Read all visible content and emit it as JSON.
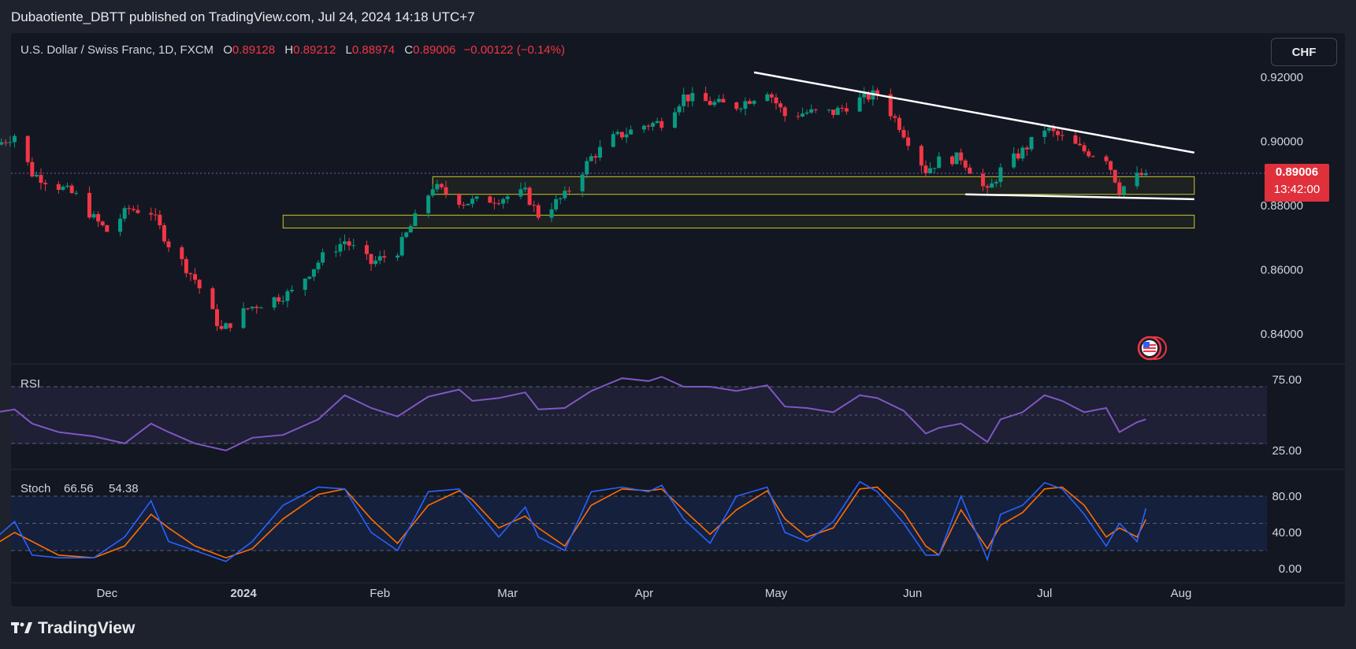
{
  "header": {
    "published": "Dubaotiente_DBTT published on TradingView.com, Jul 24, 2024 14:18 UTC+7"
  },
  "legend": {
    "symbol": "U.S. Dollar / Swiss Franc, 1D, FXCM",
    "o_label": "O",
    "o_value": "0.89128",
    "h_label": "H",
    "h_value": "0.89212",
    "l_label": "L",
    "l_value": "0.88974",
    "c_label": "C",
    "c_value": "0.89006",
    "change": "−0.00122 (−0.14%)"
  },
  "currency_button": "CHF",
  "last_price": {
    "price": "0.89006",
    "countdown": "13:42:00"
  },
  "rsi": {
    "title": "RSI",
    "upper": "75.00",
    "lower": "25.00"
  },
  "stoch": {
    "title": "Stoch",
    "k_value": "66.56",
    "d_value": "54.38",
    "levels": [
      "80.00",
      "40.00",
      "0.00"
    ]
  },
  "footer": {
    "brand": "TradingView"
  },
  "colors": {
    "up": "#089981",
    "down": "#f23645",
    "rsi": "#7e57c2",
    "stoch_k": "#2962ff",
    "stoch_d": "#ff6d00",
    "zone": "#c7c72a",
    "trendline": "#ffffff"
  },
  "chart_data": {
    "type": "candlestick",
    "title": "U.S. Dollar / Swiss Franc, 1D, FXCM",
    "price_axis": {
      "ticks": [
        0.92,
        0.9,
        0.88,
        0.86,
        0.84
      ],
      "tick_labels": [
        "0.92000",
        "0.90000",
        "0.88000",
        "0.86000",
        "0.84000"
      ],
      "ylim": [
        0.829,
        0.929
      ]
    },
    "x_axis": {
      "tick_labels": [
        "Dec",
        "2024",
        "Feb",
        "Mar",
        "Apr",
        "May",
        "Jun",
        "Jul",
        "Aug"
      ],
      "tick_dates": [
        "2023-12-01",
        "2024-01-01",
        "2024-02-01",
        "2024-03-01",
        "2024-04-01",
        "2024-05-01",
        "2024-06-01",
        "2024-07-01",
        "2024-08-01"
      ]
    },
    "close_path": [
      [
        "2023-11-06",
        0.899
      ],
      [
        "2023-11-10",
        0.902
      ],
      [
        "2023-11-14",
        0.89
      ],
      [
        "2023-11-20",
        0.886
      ],
      [
        "2023-11-24",
        0.883
      ],
      [
        "2023-11-28",
        0.876
      ],
      [
        "2023-12-01",
        0.872
      ],
      [
        "2023-12-06",
        0.879
      ],
      [
        "2023-12-11",
        0.878
      ],
      [
        "2023-12-15",
        0.868
      ],
      [
        "2023-12-21",
        0.857
      ],
      [
        "2023-12-27",
        0.841
      ],
      [
        "2024-01-02",
        0.848
      ],
      [
        "2024-01-08",
        0.851
      ],
      [
        "2024-01-12",
        0.853
      ],
      [
        "2024-01-19",
        0.864
      ],
      [
        "2024-01-24",
        0.869
      ],
      [
        "2024-01-30",
        0.862
      ],
      [
        "2024-02-05",
        0.866
      ],
      [
        "2024-02-09",
        0.876
      ],
      [
        "2024-02-13",
        0.886
      ],
      [
        "2024-02-20",
        0.881
      ],
      [
        "2024-02-27",
        0.882
      ],
      [
        "2024-03-05",
        0.884
      ],
      [
        "2024-03-08",
        0.877
      ],
      [
        "2024-03-14",
        0.883
      ],
      [
        "2024-03-20",
        0.895
      ],
      [
        "2024-03-25",
        0.901
      ],
      [
        "2024-04-01",
        0.905
      ],
      [
        "2024-04-05",
        0.906
      ],
      [
        "2024-04-10",
        0.914
      ],
      [
        "2024-04-16",
        0.912
      ],
      [
        "2024-04-22",
        0.911
      ],
      [
        "2024-04-29",
        0.916
      ],
      [
        "2024-05-03",
        0.908
      ],
      [
        "2024-05-08",
        0.909
      ],
      [
        "2024-05-14",
        0.909
      ],
      [
        "2024-05-20",
        0.913
      ],
      [
        "2024-05-24",
        0.915
      ],
      [
        "2024-05-29",
        0.905
      ],
      [
        "2024-06-04",
        0.891
      ],
      [
        "2024-06-07",
        0.894
      ],
      [
        "2024-06-12",
        0.895
      ],
      [
        "2024-06-18",
        0.884
      ],
      [
        "2024-06-21",
        0.891
      ],
      [
        "2024-06-26",
        0.897
      ],
      [
        "2024-07-01",
        0.904
      ],
      [
        "2024-07-05",
        0.901
      ],
      [
        "2024-07-10",
        0.897
      ],
      [
        "2024-07-15",
        0.895
      ],
      [
        "2024-07-18",
        0.885
      ],
      [
        "2024-07-22",
        0.889
      ],
      [
        "2024-07-24",
        0.89
      ]
    ],
    "last_close": 0.89006,
    "support_zones": [
      {
        "from": "2024-02-13",
        "to": "2024-08-04",
        "low": 0.8835,
        "high": 0.889
      },
      {
        "from": "2024-01-10",
        "to": "2024-08-04",
        "low": 0.873,
        "high": 0.877
      }
    ],
    "trendlines": [
      {
        "from": [
          "2024-04-26",
          0.9215
        ],
        "to": [
          "2024-08-04",
          0.8965
        ]
      },
      {
        "from": [
          "2024-06-13",
          0.8835
        ],
        "to": [
          "2024-08-04",
          0.882
        ]
      }
    ],
    "rsi": {
      "levels": [
        70,
        50,
        30
      ],
      "ylim": [
        20,
        80
      ],
      "points": [
        [
          "2023-11-06",
          52
        ],
        [
          "2023-11-10",
          54
        ],
        [
          "2023-11-14",
          44
        ],
        [
          "2023-11-20",
          38
        ],
        [
          "2023-11-28",
          35
        ],
        [
          "2023-12-05",
          30
        ],
        [
          "2023-12-11",
          44
        ],
        [
          "2023-12-15",
          38
        ],
        [
          "2023-12-21",
          30
        ],
        [
          "2023-12-28",
          25
        ],
        [
          "2024-01-03",
          34
        ],
        [
          "2024-01-10",
          36
        ],
        [
          "2024-01-18",
          47
        ],
        [
          "2024-01-24",
          64
        ],
        [
          "2024-01-30",
          55
        ],
        [
          "2024-02-05",
          49
        ],
        [
          "2024-02-12",
          63
        ],
        [
          "2024-02-19",
          68
        ],
        [
          "2024-02-22",
          60
        ],
        [
          "2024-02-28",
          62
        ],
        [
          "2024-03-05",
          66
        ],
        [
          "2024-03-08",
          54
        ],
        [
          "2024-03-14",
          55
        ],
        [
          "2024-03-20",
          67
        ],
        [
          "2024-03-27",
          76
        ],
        [
          "2024-04-02",
          74
        ],
        [
          "2024-04-05",
          77
        ],
        [
          "2024-04-10",
          70
        ],
        [
          "2024-04-16",
          70
        ],
        [
          "2024-04-22",
          67
        ],
        [
          "2024-04-29",
          71
        ],
        [
          "2024-05-03",
          56
        ],
        [
          "2024-05-08",
          55
        ],
        [
          "2024-05-14",
          52
        ],
        [
          "2024-05-20",
          64
        ],
        [
          "2024-05-24",
          62
        ],
        [
          "2024-05-30",
          53
        ],
        [
          "2024-06-04",
          37
        ],
        [
          "2024-06-07",
          41
        ],
        [
          "2024-06-12",
          44
        ],
        [
          "2024-06-18",
          31
        ],
        [
          "2024-06-21",
          47
        ],
        [
          "2024-06-26",
          52
        ],
        [
          "2024-07-01",
          64
        ],
        [
          "2024-07-05",
          60
        ],
        [
          "2024-07-10",
          52
        ],
        [
          "2024-07-15",
          55
        ],
        [
          "2024-07-18",
          38
        ],
        [
          "2024-07-22",
          45
        ],
        [
          "2024-07-24",
          47
        ]
      ]
    },
    "stochastic": {
      "levels": [
        80,
        50,
        20
      ],
      "ylim": [
        -5,
        100
      ],
      "k": [
        [
          "2023-11-06",
          35
        ],
        [
          "2023-11-10",
          52
        ],
        [
          "2023-11-14",
          15
        ],
        [
          "2023-11-20",
          12
        ],
        [
          "2023-11-28",
          12
        ],
        [
          "2023-12-05",
          35
        ],
        [
          "2023-12-11",
          75
        ],
        [
          "2023-12-15",
          30
        ],
        [
          "2023-12-21",
          20
        ],
        [
          "2023-12-28",
          8
        ],
        [
          "2024-01-03",
          30
        ],
        [
          "2024-01-10",
          70
        ],
        [
          "2024-01-18",
          90
        ],
        [
          "2024-01-24",
          88
        ],
        [
          "2024-01-30",
          40
        ],
        [
          "2024-02-05",
          20
        ],
        [
          "2024-02-12",
          85
        ],
        [
          "2024-02-19",
          88
        ],
        [
          "2024-02-22",
          70
        ],
        [
          "2024-02-28",
          35
        ],
        [
          "2024-03-05",
          68
        ],
        [
          "2024-03-08",
          35
        ],
        [
          "2024-03-14",
          20
        ],
        [
          "2024-03-20",
          85
        ],
        [
          "2024-03-27",
          90
        ],
        [
          "2024-04-02",
          85
        ],
        [
          "2024-04-05",
          92
        ],
        [
          "2024-04-10",
          55
        ],
        [
          "2024-04-16",
          28
        ],
        [
          "2024-04-22",
          80
        ],
        [
          "2024-04-29",
          90
        ],
        [
          "2024-05-03",
          40
        ],
        [
          "2024-05-08",
          30
        ],
        [
          "2024-05-14",
          52
        ],
        [
          "2024-05-20",
          96
        ],
        [
          "2024-05-24",
          85
        ],
        [
          "2024-05-30",
          50
        ],
        [
          "2024-06-04",
          15
        ],
        [
          "2024-06-07",
          15
        ],
        [
          "2024-06-12",
          80
        ],
        [
          "2024-06-18",
          10
        ],
        [
          "2024-06-21",
          60
        ],
        [
          "2024-06-26",
          70
        ],
        [
          "2024-07-01",
          95
        ],
        [
          "2024-07-05",
          88
        ],
        [
          "2024-07-10",
          60
        ],
        [
          "2024-07-15",
          25
        ],
        [
          "2024-07-18",
          50
        ],
        [
          "2024-07-22",
          30
        ],
        [
          "2024-07-24",
          66.56
        ]
      ],
      "d": [
        [
          "2023-11-06",
          28
        ],
        [
          "2023-11-10",
          40
        ],
        [
          "2023-11-14",
          30
        ],
        [
          "2023-11-20",
          15
        ],
        [
          "2023-11-28",
          12
        ],
        [
          "2023-12-05",
          25
        ],
        [
          "2023-12-11",
          60
        ],
        [
          "2023-12-15",
          45
        ],
        [
          "2023-12-21",
          25
        ],
        [
          "2023-12-28",
          12
        ],
        [
          "2024-01-03",
          22
        ],
        [
          "2024-01-10",
          55
        ],
        [
          "2024-01-18",
          82
        ],
        [
          "2024-01-24",
          88
        ],
        [
          "2024-01-30",
          55
        ],
        [
          "2024-02-05",
          28
        ],
        [
          "2024-02-12",
          70
        ],
        [
          "2024-02-19",
          86
        ],
        [
          "2024-02-22",
          76
        ],
        [
          "2024-02-28",
          45
        ],
        [
          "2024-03-05",
          58
        ],
        [
          "2024-03-08",
          45
        ],
        [
          "2024-03-14",
          25
        ],
        [
          "2024-03-20",
          70
        ],
        [
          "2024-03-27",
          88
        ],
        [
          "2024-04-02",
          86
        ],
        [
          "2024-04-05",
          88
        ],
        [
          "2024-04-10",
          65
        ],
        [
          "2024-04-16",
          38
        ],
        [
          "2024-04-22",
          65
        ],
        [
          "2024-04-29",
          86
        ],
        [
          "2024-05-03",
          55
        ],
        [
          "2024-05-08",
          35
        ],
        [
          "2024-05-14",
          45
        ],
        [
          "2024-05-20",
          88
        ],
        [
          "2024-05-24",
          90
        ],
        [
          "2024-05-30",
          62
        ],
        [
          "2024-06-04",
          25
        ],
        [
          "2024-06-07",
          15
        ],
        [
          "2024-06-12",
          65
        ],
        [
          "2024-06-18",
          22
        ],
        [
          "2024-06-21",
          48
        ],
        [
          "2024-06-26",
          62
        ],
        [
          "2024-07-01",
          88
        ],
        [
          "2024-07-05",
          90
        ],
        [
          "2024-07-10",
          70
        ],
        [
          "2024-07-15",
          35
        ],
        [
          "2024-07-18",
          45
        ],
        [
          "2024-07-22",
          35
        ],
        [
          "2024-07-24",
          54.38
        ]
      ]
    }
  }
}
